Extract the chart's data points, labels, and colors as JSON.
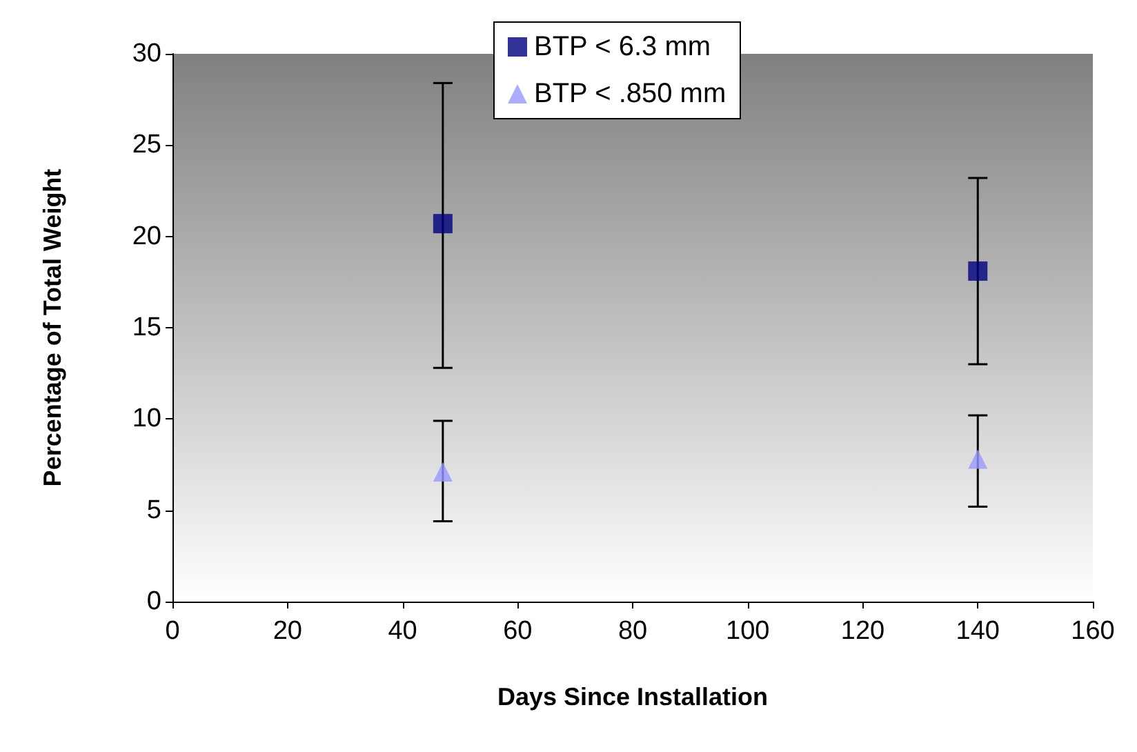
{
  "chart_data": {
    "type": "scatter",
    "xlabel": "Days Since Installation",
    "ylabel": "Percentage of Total Weight",
    "x": [
      47,
      140
    ],
    "series": [
      {
        "name": "BTP < 6.3 mm",
        "color": "#000080",
        "marker": "square",
        "values": [
          20.7,
          18.1
        ],
        "errors": [
          [
            12.8,
            28.4
          ],
          [
            13.0,
            23.2
          ]
        ]
      },
      {
        "name": "BTP < .850 mm",
        "color": "#9999ff",
        "marker": "triangle",
        "values": [
          7.1,
          7.8
        ],
        "errors": [
          [
            4.4,
            9.9
          ],
          [
            5.2,
            10.2
          ]
        ]
      }
    ],
    "xlim": [
      0,
      160
    ],
    "xticks": [
      0,
      20,
      40,
      60,
      80,
      100,
      120,
      140,
      160
    ],
    "ylim": [
      0,
      30
    ],
    "yticks": [
      0,
      5,
      10,
      15,
      20,
      25,
      30
    ],
    "grid": false,
    "legend": "top"
  }
}
